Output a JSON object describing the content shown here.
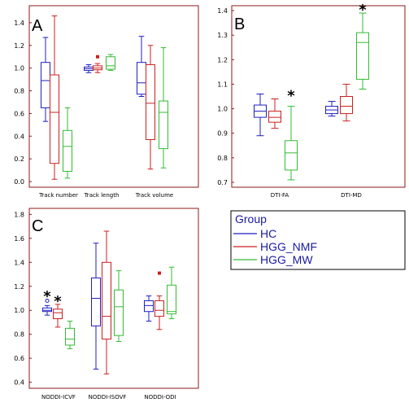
{
  "colors": {
    "frame": "#8b1a1a",
    "HC": "#1f1fbf",
    "HGG_NMF": "#cc1f1f",
    "HGG_MW": "#33bb33",
    "legend_text": "#1a1aa0"
  },
  "legend": {
    "title": "Group",
    "entries": [
      {
        "name": "HC",
        "color": "#1f1fbf"
      },
      {
        "name": "HGG_NMF",
        "color": "#cc1f1f"
      },
      {
        "name": "HGG_MW",
        "color": "#33bb33"
      }
    ]
  },
  "chart_data": [
    {
      "panel": "A",
      "type": "box",
      "ylim": [
        -0.05,
        1.55
      ],
      "yticks": [
        0.0,
        0.2,
        0.4,
        0.6,
        0.8,
        1.0,
        1.2,
        1.4
      ],
      "categories": [
        "Track number",
        "Track length",
        "Track volume"
      ],
      "groups": [
        {
          "category": "Track number",
          "series": "HC",
          "min": 0.53,
          "q1": 0.65,
          "median": 0.89,
          "q3": 1.05,
          "max": 1.27,
          "outliers": []
        },
        {
          "category": "Track number",
          "series": "HGG_NMF",
          "min": 0.02,
          "q1": 0.16,
          "median": 0.61,
          "q3": 0.94,
          "max": 1.46,
          "outliers": []
        },
        {
          "category": "Track number",
          "series": "HGG_MW",
          "min": 0.03,
          "q1": 0.09,
          "median": 0.31,
          "q3": 0.45,
          "max": 0.65,
          "outliers": []
        },
        {
          "category": "Track length",
          "series": "HC",
          "min": 0.96,
          "q1": 0.98,
          "median": 0.995,
          "q3": 1.01,
          "max": 1.03,
          "outliers": []
        },
        {
          "category": "Track length",
          "series": "HGG_NMF",
          "min": 0.96,
          "q1": 0.985,
          "median": 1.0,
          "q3": 1.02,
          "max": 1.04,
          "outliers": [
            1.1
          ]
        },
        {
          "category": "Track length",
          "series": "HGG_MW",
          "min": 0.98,
          "q1": 0.99,
          "median": 1.02,
          "q3": 1.1,
          "max": 1.12,
          "outliers": []
        },
        {
          "category": "Track volume",
          "series": "HC",
          "min": 0.75,
          "q1": 0.77,
          "median": 0.87,
          "q3": 1.05,
          "max": 1.28,
          "outliers": []
        },
        {
          "category": "Track volume",
          "series": "HGG_NMF",
          "min": 0.11,
          "q1": 0.37,
          "median": 0.69,
          "q3": 1.03,
          "max": 1.2,
          "outliers": []
        },
        {
          "category": "Track volume",
          "series": "HGG_MW",
          "min": 0.12,
          "q1": 0.29,
          "median": 0.61,
          "q3": 0.71,
          "max": 1.18,
          "outliers": []
        }
      ],
      "stars": []
    },
    {
      "panel": "B",
      "type": "box",
      "ylim": [
        0.68,
        1.42
      ],
      "yticks": [
        0.7,
        0.8,
        0.9,
        1.0,
        1.1,
        1.2,
        1.3,
        1.4
      ],
      "categories": [
        "DTI-FA",
        "DTI-MD"
      ],
      "groups": [
        {
          "category": "DTI-FA",
          "series": "HC",
          "min": 0.89,
          "q1": 0.965,
          "median": 0.99,
          "q3": 1.015,
          "max": 1.06,
          "outliers": []
        },
        {
          "category": "DTI-FA",
          "series": "HGG_NMF",
          "min": 0.92,
          "q1": 0.945,
          "median": 0.965,
          "q3": 0.99,
          "max": 1.04,
          "outliers": []
        },
        {
          "category": "DTI-FA",
          "series": "HGG_MW",
          "min": 0.71,
          "q1": 0.75,
          "median": 0.82,
          "q3": 0.87,
          "max": 1.01,
          "outliers": []
        },
        {
          "category": "DTI-MD",
          "series": "HC",
          "min": 0.97,
          "q1": 0.98,
          "median": 0.995,
          "q3": 1.01,
          "max": 1.03,
          "outliers": []
        },
        {
          "category": "DTI-MD",
          "series": "HGG_NMF",
          "min": 0.95,
          "q1": 0.98,
          "median": 1.01,
          "q3": 1.05,
          "max": 1.1,
          "outliers": []
        },
        {
          "category": "DTI-MD",
          "series": "HGG_MW",
          "min": 1.08,
          "q1": 1.12,
          "median": 1.27,
          "q3": 1.31,
          "max": 1.39,
          "outliers": []
        }
      ],
      "stars": [
        {
          "category": "DTI-FA",
          "series": "HGG_MW",
          "y": 1.06
        },
        {
          "category": "DTI-MD",
          "series": "HGG_MW",
          "y": 1.41
        }
      ]
    },
    {
      "panel": "C",
      "type": "box",
      "ylim": [
        0.35,
        1.85
      ],
      "yticks": [
        0.4,
        0.6,
        0.8,
        1.0,
        1.2,
        1.4,
        1.6,
        1.8
      ],
      "categories": [
        "NODDI-ICVF",
        "NODDI-ISOVF",
        "NODDI-ODI"
      ],
      "groups": [
        {
          "category": "NODDI-ICVF",
          "series": "HC",
          "min": 0.96,
          "q1": 0.99,
          "median": 1.0,
          "q3": 1.02,
          "max": 1.04,
          "outliers": [
            1.08
          ]
        },
        {
          "category": "NODDI-ICVF",
          "series": "HGG_NMF",
          "min": 0.86,
          "q1": 0.93,
          "median": 0.98,
          "q3": 1.01,
          "max": 1.05,
          "outliers": []
        },
        {
          "category": "NODDI-ICVF",
          "series": "HGG_MW",
          "min": 0.68,
          "q1": 0.71,
          "median": 0.76,
          "q3": 0.85,
          "max": 0.91,
          "outliers": []
        },
        {
          "category": "NODDI-ISOVF",
          "series": "HC",
          "min": 0.51,
          "q1": 0.87,
          "median": 1.1,
          "q3": 1.27,
          "max": 1.56,
          "outliers": []
        },
        {
          "category": "NODDI-ISOVF",
          "series": "HGG_NMF",
          "min": 0.47,
          "q1": 0.76,
          "median": 0.95,
          "q3": 1.4,
          "max": 1.66,
          "outliers": []
        },
        {
          "category": "NODDI-ISOVF",
          "series": "HGG_MW",
          "min": 0.74,
          "q1": 0.79,
          "median": 1.03,
          "q3": 1.17,
          "max": 1.33,
          "outliers": []
        }
      ],
      "extra_groups": [
        {
          "category": "NODDI-ODI",
          "series": "HC",
          "min": 0.91,
          "q1": 0.99,
          "median": 1.04,
          "q3": 1.08,
          "max": 1.12,
          "outliers": []
        },
        {
          "category": "NODDI-ODI",
          "series": "HGG_NMF",
          "min": 0.84,
          "q1": 0.95,
          "median": 1.0,
          "q3": 1.08,
          "max": 1.12,
          "outliers": [
            1.31
          ]
        },
        {
          "category": "NODDI-ODI",
          "series": "HGG_MW",
          "min": 0.93,
          "q1": 0.97,
          "median": 0.99,
          "q3": 1.21,
          "max": 1.36,
          "outliers": []
        }
      ],
      "stars": [
        {
          "category": "NODDI-ICVF",
          "series": "HC",
          "y": 1.13
        },
        {
          "category": "NODDI-ICVF",
          "series": "HGG_NMF",
          "y": 1.09
        }
      ]
    }
  ]
}
